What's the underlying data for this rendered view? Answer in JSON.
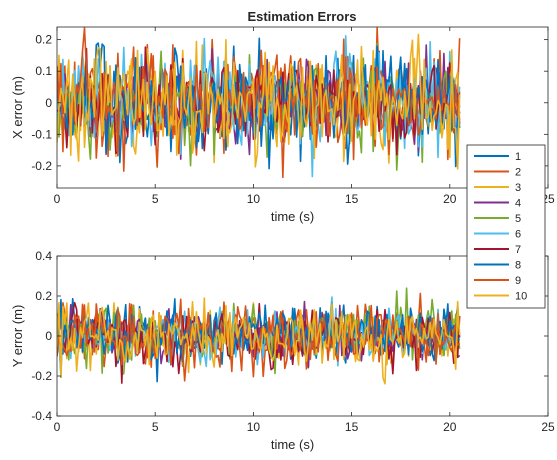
{
  "chart_data": [
    {
      "type": "line",
      "title": "Estimation Errors",
      "xlabel": "time (s)",
      "ylabel": "X error (m)",
      "xlim": [
        0,
        25
      ],
      "ylim": [
        -0.27,
        0.24
      ],
      "xticks": [
        0,
        5,
        10,
        15,
        20,
        25
      ],
      "yticks": [
        -0.2,
        -0.1,
        0,
        0.1,
        0.2
      ],
      "xtick_labels": [
        "0",
        "5",
        "10",
        "15",
        "20",
        "25"
      ],
      "ytick_labels": [
        "-0.2",
        "-0.1",
        "0",
        "0.1",
        "0.2"
      ],
      "grid": false,
      "data_x_range": [
        0,
        20.5
      ],
      "series": [
        {
          "name": "1",
          "color": "#0072BD",
          "std": 0.075,
          "seed": 11
        },
        {
          "name": "2",
          "color": "#D95319",
          "std": 0.08,
          "seed": 23
        },
        {
          "name": "3",
          "color": "#EDB120",
          "std": 0.08,
          "seed": 37
        },
        {
          "name": "4",
          "color": "#7E2F8E",
          "std": 0.07,
          "seed": 41
        },
        {
          "name": "5",
          "color": "#77AC30",
          "std": 0.075,
          "seed": 53
        },
        {
          "name": "6",
          "color": "#4DBEEE",
          "std": 0.08,
          "seed": 67
        },
        {
          "name": "7",
          "color": "#A2142F",
          "std": 0.075,
          "seed": 71
        },
        {
          "name": "8",
          "color": "#0072BD",
          "std": 0.075,
          "seed": 83
        },
        {
          "name": "9",
          "color": "#D95319",
          "std": 0.08,
          "seed": 97
        },
        {
          "name": "10",
          "color": "#EDB120",
          "std": 0.085,
          "seed": 101
        }
      ]
    },
    {
      "type": "line",
      "title": "",
      "xlabel": "time (s)",
      "ylabel": "Y error (m)",
      "xlim": [
        0,
        25
      ],
      "ylim": [
        -0.4,
        0.4
      ],
      "xticks": [
        0,
        5,
        10,
        15,
        20,
        25
      ],
      "yticks": [
        -0.4,
        -0.2,
        0,
        0.2,
        0.4
      ],
      "xtick_labels": [
        "0",
        "5",
        "10",
        "15",
        "20",
        "25"
      ],
      "ytick_labels": [
        "-0.4",
        "-0.2",
        "0",
        "0.2",
        "0.4"
      ],
      "grid": false,
      "data_x_range": [
        0,
        20.5
      ],
      "series": [
        {
          "name": "1",
          "color": "#0072BD",
          "std": 0.065,
          "seed": 113
        },
        {
          "name": "2",
          "color": "#D95319",
          "std": 0.075,
          "seed": 127
        },
        {
          "name": "3",
          "color": "#EDB120",
          "std": 0.07,
          "seed": 131
        },
        {
          "name": "4",
          "color": "#7E2F8E",
          "std": 0.06,
          "seed": 149
        },
        {
          "name": "5",
          "color": "#77AC30",
          "std": 0.075,
          "seed": 151
        },
        {
          "name": "6",
          "color": "#4DBEEE",
          "std": 0.065,
          "seed": 163
        },
        {
          "name": "7",
          "color": "#A2142F",
          "std": 0.07,
          "seed": 173
        },
        {
          "name": "8",
          "color": "#0072BD",
          "std": 0.065,
          "seed": 181
        },
        {
          "name": "9",
          "color": "#D95319",
          "std": 0.08,
          "seed": 191
        },
        {
          "name": "10",
          "color": "#EDB120",
          "std": 0.075,
          "seed": 199
        }
      ]
    }
  ],
  "legend": {
    "placement": "right",
    "entries": [
      "1",
      "2",
      "3",
      "4",
      "5",
      "6",
      "7",
      "8",
      "9",
      "10"
    ]
  }
}
